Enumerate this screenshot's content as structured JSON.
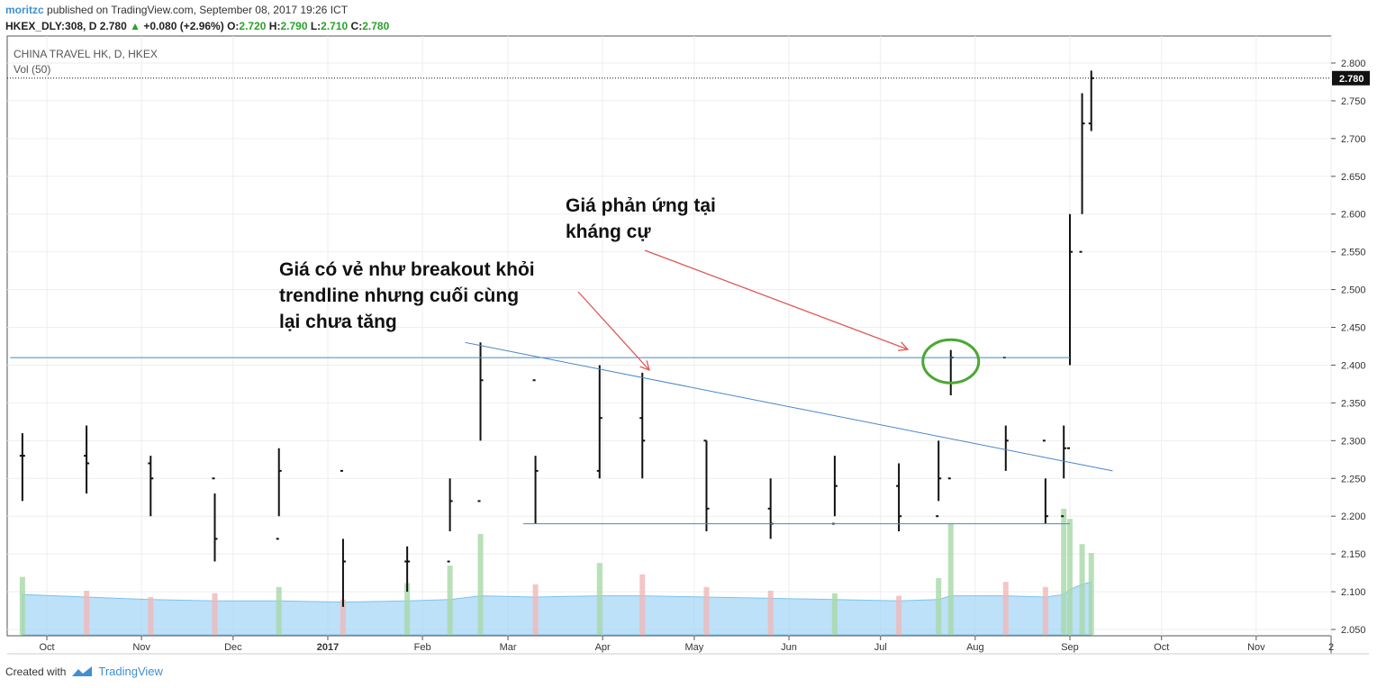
{
  "header": {
    "user": "moritzc",
    "published": "published on TradingView.com, September 08, 2017 19:26 ICT",
    "symbol_line": "HKEX_DLY:308, D",
    "last": "2.780",
    "change": "+0.080 (+2.96%)",
    "o_label": "O:",
    "o_val": "2.720",
    "h_label": "H:",
    "h_val": "2.790",
    "l_label": "L:",
    "l_val": "2.710",
    "c_label": "C:",
    "c_val": "2.780"
  },
  "footer": {
    "created_with": "Created with",
    "brand": "TradingView"
  },
  "chart_data": {
    "type": "bar",
    "title": "CHINA TRAVEL HK, D, HKEX",
    "subtitle": "Vol (50)",
    "y_ticks": [
      "2.800",
      "2.750",
      "2.700",
      "2.650",
      "2.600",
      "2.550",
      "2.500",
      "2.450",
      "2.400",
      "2.350",
      "2.300",
      "2.250",
      "2.200",
      "2.150",
      "2.100",
      "2.050"
    ],
    "x_ticks": [
      "Oct",
      "Nov",
      "Dec",
      "2017",
      "Feb",
      "Mar",
      "Apr",
      "May",
      "Jun",
      "Jul",
      "Aug",
      "Sep",
      "Oct",
      "Nov",
      "2"
    ],
    "ylim": [
      2.035,
      2.83
    ],
    "last_price_label": "2.780",
    "series": [
      {
        "x": [
          "2016-09-23",
          "2016-10-14",
          "2016-11-04",
          "2016-11-25",
          "2016-12-16",
          "2017-01-06",
          "2017-01-27",
          "2017-02-10",
          "2017-02-20",
          "2017-03-10",
          "2017-03-31",
          "2017-04-14",
          "2017-05-05",
          "2017-05-26",
          "2017-06-16",
          "2017-07-07",
          "2017-07-20",
          "2017-07-24",
          "2017-08-11",
          "2017-08-24",
          "2017-08-30",
          "2017-09-01",
          "2017-09-05",
          "2017-09-08"
        ],
        "values": [
          2.28,
          2.27,
          2.25,
          2.17,
          2.26,
          2.14,
          2.14,
          2.22,
          2.38,
          2.26,
          2.33,
          2.3,
          2.21,
          2.19,
          2.24,
          2.2,
          2.25,
          2.41,
          2.3,
          2.2,
          2.29,
          2.55,
          2.72,
          2.78
        ],
        "high": [
          2.31,
          2.32,
          2.28,
          2.23,
          2.29,
          2.17,
          2.16,
          2.25,
          2.43,
          2.28,
          2.4,
          2.39,
          2.3,
          2.25,
          2.28,
          2.27,
          2.3,
          2.42,
          2.32,
          2.25,
          2.32,
          2.6,
          2.76,
          2.79
        ],
        "low": [
          2.22,
          2.23,
          2.2,
          2.14,
          2.2,
          2.08,
          2.1,
          2.18,
          2.3,
          2.19,
          2.25,
          2.25,
          2.18,
          2.17,
          2.2,
          2.18,
          2.22,
          2.36,
          2.26,
          2.19,
          2.25,
          2.4,
          2.6,
          2.71
        ]
      }
    ],
    "volume_bars": [
      0.46,
      0.35,
      0.3,
      0.33,
      0.38,
      0.28,
      0.41,
      0.55,
      0.8,
      0.4,
      0.57,
      0.48,
      0.38,
      0.35,
      0.33,
      0.31,
      0.45,
      0.88,
      0.42,
      0.38,
      1.0,
      0.92,
      0.72,
      0.65
    ],
    "volume_ma50": [
      0.32,
      0.3,
      0.28,
      0.27,
      0.27,
      0.26,
      0.27,
      0.28,
      0.31,
      0.3,
      0.31,
      0.31,
      0.3,
      0.29,
      0.28,
      0.27,
      0.28,
      0.31,
      0.31,
      0.3,
      0.32,
      0.36,
      0.4,
      0.42
    ],
    "lines": [
      {
        "name": "resistance",
        "x1": "2016-09-19",
        "y1": 2.41,
        "x2": "2017-09-01",
        "y2": 2.41
      },
      {
        "name": "trendline",
        "x1": "2017-02-15",
        "y1": 2.43,
        "x2": "2017-09-15",
        "y2": 2.26
      },
      {
        "name": "support",
        "x1": "2017-03-06",
        "y1": 2.19,
        "x2": "2017-09-01",
        "y2": 2.19
      }
    ],
    "annotations": [
      {
        "lines": [
          "Giá có vẻ như breakout khỏi",
          "trendline nhưng cuối cùng",
          "lại chưa tăng"
        ]
      },
      {
        "lines": [
          "Giá phản ứng tại",
          "kháng cự"
        ]
      }
    ],
    "colors": {
      "line": "#4a86c8",
      "arrow": "#e05555",
      "circle": "#4aa832",
      "volume_up": "#a8d8a8",
      "volume_down": "#f0b8b8",
      "volume_ma": "#9fd4f5"
    },
    "grid": true
  }
}
